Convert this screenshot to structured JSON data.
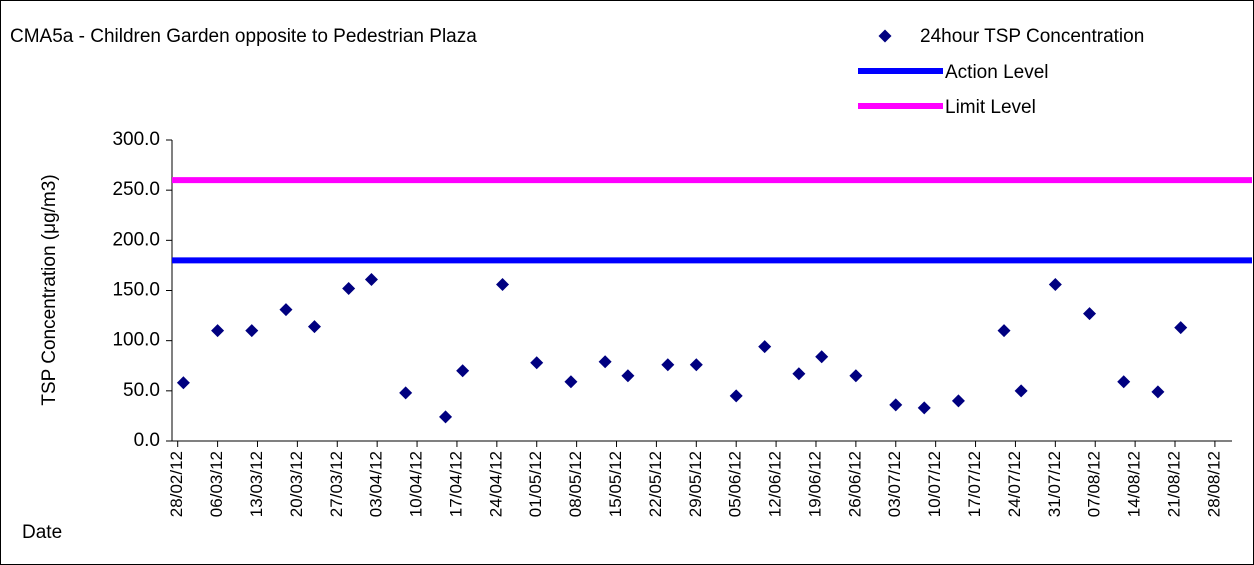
{
  "chart_data": {
    "type": "scatter",
    "title": "CMA5a - Children Garden opposite to Pedestrian Plaza",
    "ylabel": "TSP Concentration (μg/m3)",
    "xlabel": "Date",
    "xlim": [
      "27/02/12",
      "31/08/12"
    ],
    "xticks": [
      "28/02/12",
      "06/03/12",
      "13/03/12",
      "20/03/12",
      "27/03/12",
      "03/04/12",
      "10/04/12",
      "17/04/12",
      "24/04/12",
      "01/05/12",
      "08/05/12",
      "15/05/12",
      "22/05/12",
      "29/05/12",
      "05/06/12",
      "12/06/12",
      "19/06/12",
      "26/06/12",
      "03/07/12",
      "10/07/12",
      "17/07/12",
      "24/07/12",
      "31/07/12",
      "07/08/12",
      "14/08/12",
      "21/08/12",
      "28/08/12"
    ],
    "ylim": [
      0,
      300
    ],
    "yticks": [
      {
        "value": 0,
        "label": "0.0"
      },
      {
        "value": 50,
        "label": "50.0"
      },
      {
        "value": 100,
        "label": "100.0"
      },
      {
        "value": 150,
        "label": "150.0"
      },
      {
        "value": 200,
        "label": "200.0"
      },
      {
        "value": 250,
        "label": "250.0"
      },
      {
        "value": 300,
        "label": "300.0"
      }
    ],
    "series": [
      {
        "name": "24hour TSP Concentration",
        "color": "#000080",
        "x": [
          "29/02/12",
          "06/03/12",
          "12/03/12",
          "18/03/12",
          "23/03/12",
          "29/03/12",
          "02/04/12",
          "08/04/12",
          "15/04/12",
          "18/04/12",
          "25/04/12",
          "01/05/12",
          "07/05/12",
          "13/05/12",
          "17/05/12",
          "24/05/12",
          "29/05/12",
          "05/06/12",
          "10/06/12",
          "16/06/12",
          "20/06/12",
          "26/06/12",
          "03/07/12",
          "08/07/12",
          "14/07/12",
          "22/07/12",
          "25/07/12",
          "31/07/12",
          "06/08/12",
          "12/08/12",
          "18/08/12",
          "22/08/12"
        ],
        "values": [
          58,
          110,
          110,
          131,
          114,
          152,
          161,
          48,
          24,
          70,
          156,
          78,
          59,
          79,
          65,
          76,
          76,
          45,
          94,
          67,
          84,
          65,
          36,
          33,
          40,
          110,
          50,
          156,
          127,
          59,
          49,
          113
        ]
      }
    ],
    "hlines": [
      {
        "name": "Action Level",
        "color": "#0000ff",
        "value": 180
      },
      {
        "name": "Limit Level",
        "color": "#ff00ff",
        "value": 260
      }
    ]
  }
}
